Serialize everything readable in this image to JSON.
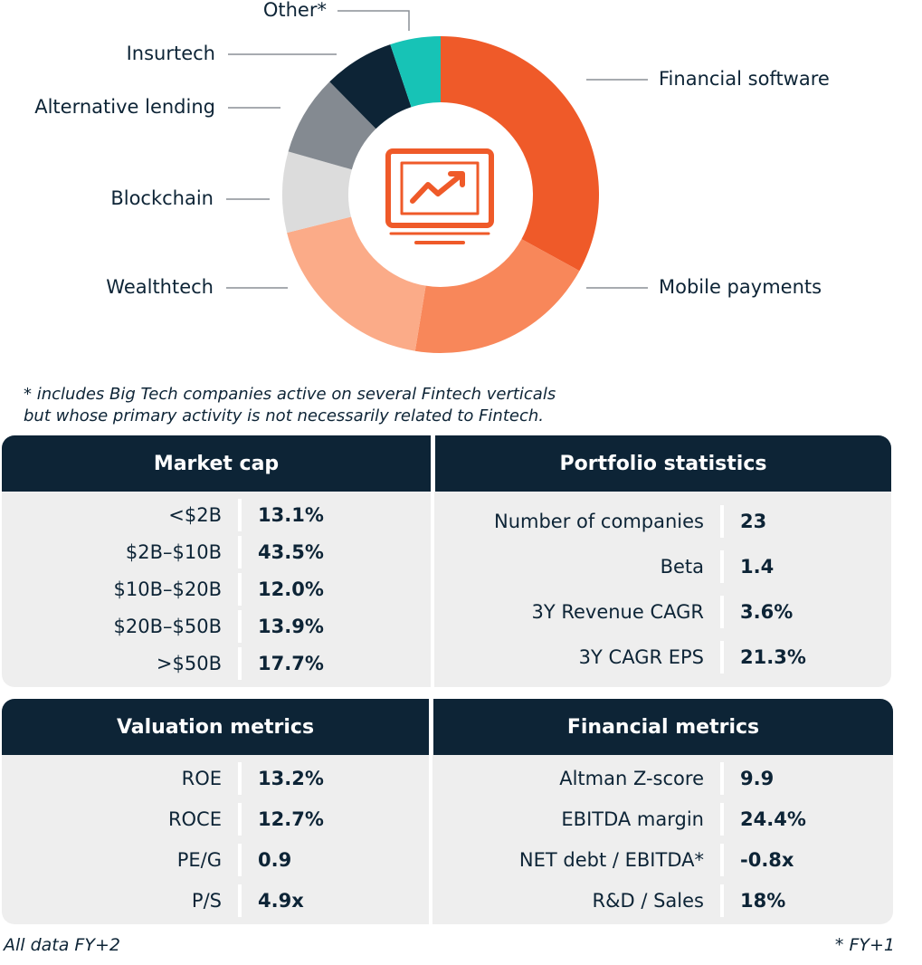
{
  "chart_data": {
    "type": "pie",
    "categories": [
      "Financial software",
      "Mobile payments",
      "Wealthtech",
      "Blockchain",
      "Alternative lending",
      "Insurtech",
      "Other*"
    ],
    "values": [
      32,
      19,
      18,
      8,
      8,
      7,
      5
    ],
    "colors": [
      "#ef5a29",
      "#f8875a",
      "#fbab88",
      "#dcdcdc",
      "#848a91",
      "#0d2436",
      "#17c3b6"
    ],
    "center_icon": "monitor-chart-icon"
  },
  "footnote": {
    "line1": "* includes Big Tech companies active on several Fintech verticals",
    "line2": "but whose primary activity is not necessarily related to Fintech."
  },
  "market_cap": {
    "title": "Market cap",
    "rows": [
      {
        "label": "<$2B",
        "value": "13.1%"
      },
      {
        "label": "$2B–$10B",
        "value": "43.5%"
      },
      {
        "label": "$10B–$20B",
        "value": "12.0%"
      },
      {
        "label": "$20B–$50B",
        "value": "13.9%"
      },
      {
        "label": ">$50B",
        "value": "17.7%"
      }
    ]
  },
  "portfolio": {
    "title": "Portfolio statistics",
    "rows": [
      {
        "label": "Number of companies",
        "value": "23"
      },
      {
        "label": "Beta",
        "value": "1.4"
      },
      {
        "label": "3Y Revenue CAGR",
        "value": "3.6%"
      },
      {
        "label": "3Y CAGR EPS",
        "value": "21.3%"
      }
    ]
  },
  "valuation": {
    "title": "Valuation metrics",
    "rows": [
      {
        "label": "ROE",
        "value": "13.2%"
      },
      {
        "label": "ROCE",
        "value": "12.7%"
      },
      {
        "label": "PE/G",
        "value": "0.9"
      },
      {
        "label": "P/S",
        "value": "4.9x"
      }
    ]
  },
  "financial": {
    "title": "Financial metrics",
    "rows": [
      {
        "label": "Altman Z-score",
        "value": "9.9"
      },
      {
        "label": "EBITDA margin",
        "value": "24.4%"
      },
      {
        "label": "NET debt / EBITDA*",
        "value": "-0.8x"
      },
      {
        "label": "R&D / Sales",
        "value": "18%"
      }
    ]
  },
  "notes": {
    "left": "All data FY+2",
    "right": "* FY+1"
  }
}
